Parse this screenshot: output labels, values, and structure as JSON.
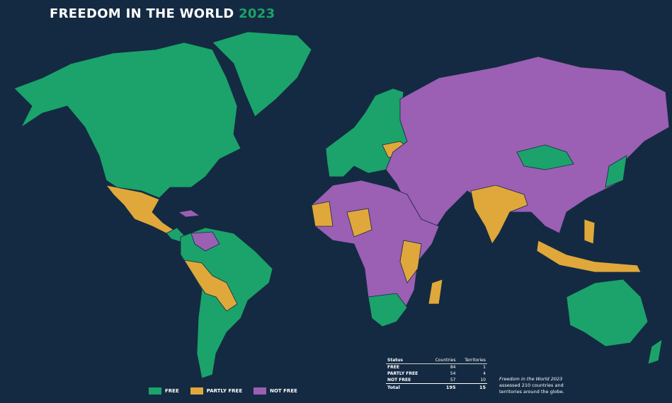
{
  "title": {
    "main": "FREEDOM IN THE WORLD",
    "year": "2023"
  },
  "legend": [
    {
      "label": "FREE",
      "color": "#1ba36b"
    },
    {
      "label": "PARTLY FREE",
      "color": "#e0a83a"
    },
    {
      "label": "NOT FREE",
      "color": "#9b5fb4"
    }
  ],
  "table": {
    "header": [
      "Status",
      "Countries",
      "Territories"
    ],
    "rows": [
      [
        "FREE",
        84,
        1
      ],
      [
        "PARTLY FREE",
        54,
        4
      ],
      [
        "NOT FREE",
        57,
        10
      ]
    ],
    "total": [
      "Total",
      195,
      15
    ]
  },
  "note": {
    "title": "Freedom in the World 2023",
    "text": "assessed 210 countries and territories around the globe."
  }
}
